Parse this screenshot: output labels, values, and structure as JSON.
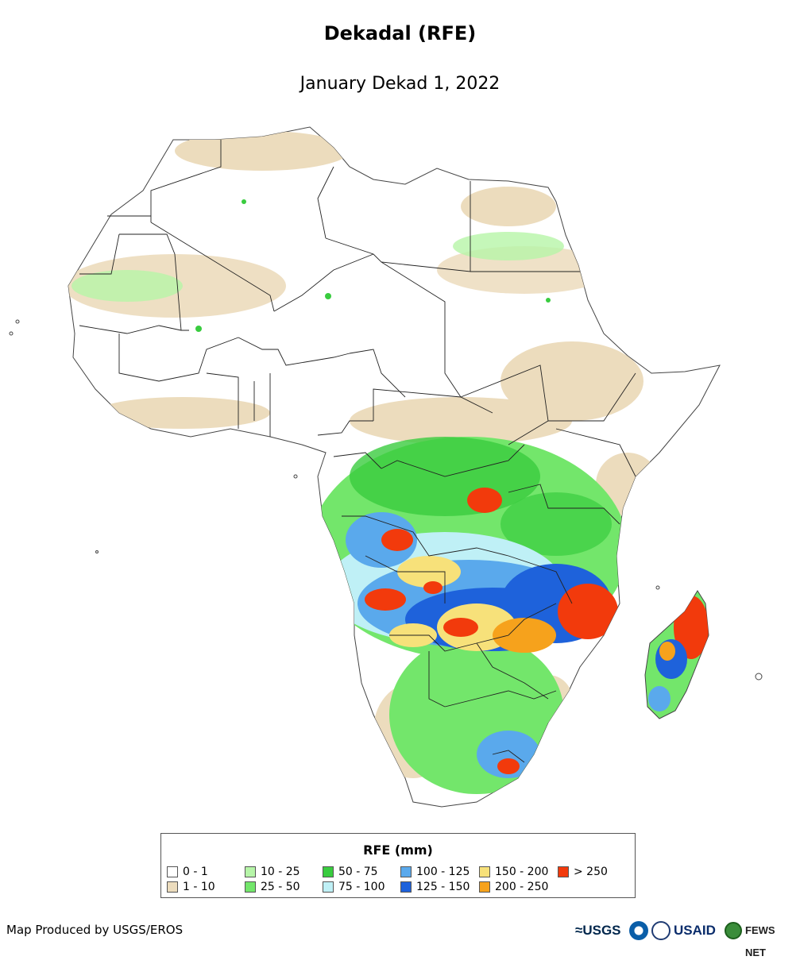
{
  "title": "Dekadal (RFE)",
  "subtitle": "January Dekad 1, 2022",
  "legend": {
    "title": "RFE (mm)",
    "items": [
      {
        "label": "0 - 1",
        "color": "#ffffff"
      },
      {
        "label": "1 - 10",
        "color": "#ecdcbd"
      },
      {
        "label": "10 - 25",
        "color": "#b6f5a8"
      },
      {
        "label": "25 - 50",
        "color": "#73e66b"
      },
      {
        "label": "50 - 75",
        "color": "#39cc3f"
      },
      {
        "label": "75 - 100",
        "color": "#bff0f6"
      },
      {
        "label": "100 - 125",
        "color": "#5aa9ec"
      },
      {
        "label": "125 - 150",
        "color": "#1e62db"
      },
      {
        "label": "150 - 200",
        "color": "#f7e17a"
      },
      {
        "label": "200 - 250",
        "color": "#f6a21c"
      },
      {
        "label": "> 250",
        "color": "#f23a0c"
      }
    ]
  },
  "credit": "Map Produced by USGS/EROS",
  "logos": {
    "usgs": "≈USGS",
    "noaa": "noaa-logo",
    "doc": "commerce-seal",
    "usaid": "USAID",
    "fews_icon": "globe-icon",
    "fews": "FEWS NET"
  }
}
